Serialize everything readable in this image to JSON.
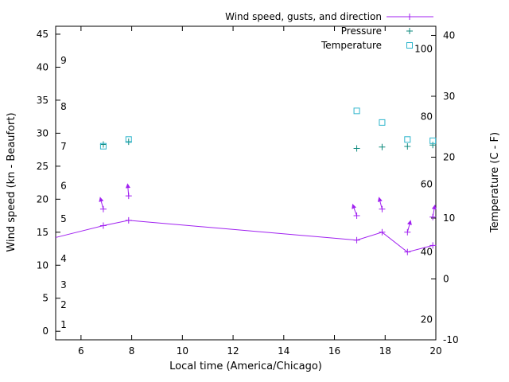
{
  "chart_data": {
    "type": "line",
    "title": "",
    "xlabel": "Local time (America/Chicago)",
    "ylabel_left": "Wind speed (kn - Beaufort)",
    "ylabel_right": "Temperature (C - F)",
    "xlim": [
      5,
      20
    ],
    "x_ticks": [
      6,
      8,
      10,
      12,
      14,
      16,
      18,
      20
    ],
    "y_left_axis": {
      "units": "kn",
      "lim": [
        -1.3,
        46.2
      ],
      "ticks": [
        0,
        5,
        10,
        15,
        20,
        25,
        30,
        35,
        40,
        45
      ]
    },
    "beaufort_labels": [
      {
        "bft": "1",
        "kn": 1
      },
      {
        "bft": "2",
        "kn": 4
      },
      {
        "bft": "3",
        "kn": 7
      },
      {
        "bft": "4",
        "kn": 11
      },
      {
        "bft": "5",
        "kn": 17
      },
      {
        "bft": "6",
        "kn": 22
      },
      {
        "bft": "7",
        "kn": 28
      },
      {
        "bft": "8",
        "kn": 34
      },
      {
        "bft": "9",
        "kn": 41
      }
    ],
    "y_right_axis": {
      "units": "C",
      "lim": [
        -10,
        41.5
      ],
      "ticks": [
        -10,
        0,
        10,
        20,
        30,
        40
      ]
    },
    "fahrenheit_labels": [
      20,
      40,
      60,
      80,
      100
    ],
    "grid": false,
    "legend_position": "top-right-inside",
    "series": {
      "wind_speed": {
        "label": "Wind speed, gusts, and direction",
        "color": "#a020f0",
        "marker": "plus",
        "line_start_at_left_edge": {
          "x": 5,
          "kn": 14.2
        },
        "x": [
          6.88,
          7.88,
          16.88,
          17.88,
          18.88,
          19.88
        ],
        "kn": [
          16.0,
          16.8,
          13.8,
          15.0,
          12.0,
          13.0
        ]
      },
      "wind_gusts": {
        "color": "#a020f0",
        "marker": "plus",
        "x": [
          6.88,
          7.88,
          16.88,
          17.88,
          18.88,
          19.88
        ],
        "kn": [
          18.5,
          20.5,
          17.5,
          18.5,
          15.0,
          17.3
        ]
      },
      "wind_direction_arrows": {
        "color": "#a020f0",
        "x": [
          6.88,
          7.88,
          16.88,
          17.88,
          18.88,
          19.88
        ],
        "kn": [
          18.5,
          20.5,
          17.5,
          18.5,
          15.0,
          17.3
        ],
        "angle_deg": [
          -15,
          -5,
          -20,
          -15,
          15,
          10
        ]
      },
      "pressure": {
        "label": "Pressure",
        "color": "#0e8a7d",
        "marker": "plus",
        "x": [
          6.88,
          7.88,
          16.88,
          17.88,
          18.88,
          19.88
        ],
        "y_in_left_axis_units": [
          28.3,
          28.7,
          27.7,
          27.9,
          28.0,
          28.2
        ]
      },
      "temperature": {
        "label": "Temperature",
        "color": "#2eb5cc",
        "marker": "open-square",
        "x": [
          6.88,
          7.88,
          16.88,
          17.88,
          18.88,
          19.88
        ],
        "celsius": [
          21.8,
          22.9,
          27.6,
          25.7,
          22.9,
          22.7
        ]
      }
    }
  }
}
